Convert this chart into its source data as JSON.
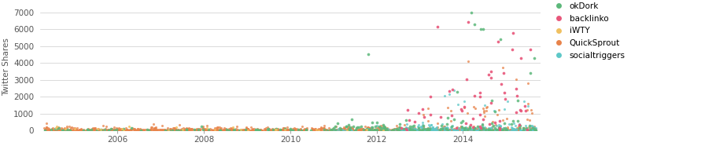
{
  "title": "",
  "ylabel": "Twitter Shares",
  "ylim": [
    0,
    7500
  ],
  "xlim": [
    2004.2,
    2015.8
  ],
  "yticks": [
    0,
    1000,
    2000,
    3000,
    4000,
    5000,
    6000,
    7000
  ],
  "xticks": [
    2006,
    2008,
    2010,
    2012,
    2014
  ],
  "colors": {
    "okDork": "#5cb87a",
    "backlinko": "#e8567a",
    "iWTY": "#f0c060",
    "QuickSprout": "#e8834a",
    "socialtriggers": "#5ec8c8"
  },
  "legend_labels": [
    "okDork",
    "backlinko",
    "iWTY",
    "QuickSprout",
    "socialtriggers"
  ],
  "background_color": "#ffffff",
  "grid_color": "#cccccc"
}
